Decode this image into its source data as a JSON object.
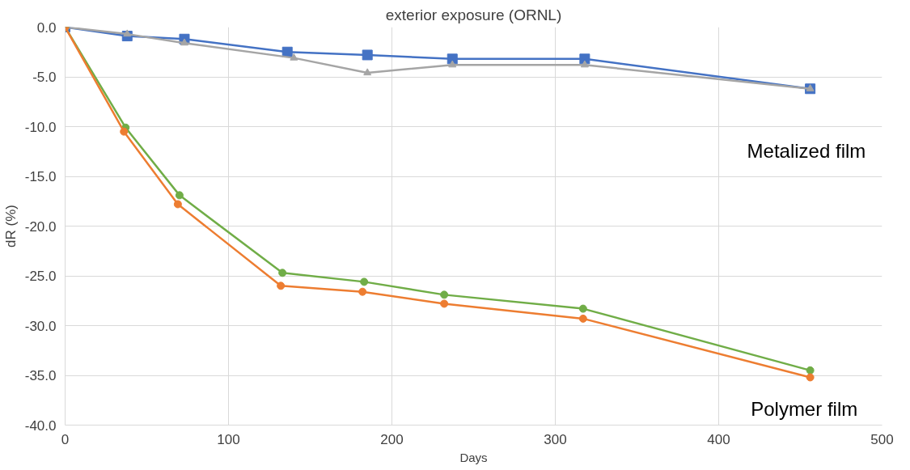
{
  "chart_data": {
    "type": "line",
    "title": "exterior exposure (ORNL)",
    "xlabel": "Days",
    "ylabel": "dR (%)",
    "series": [
      {
        "color": "#4472c4",
        "marker": "square",
        "x": [
          0,
          38,
          73,
          136,
          185,
          237,
          318,
          456
        ],
        "values": [
          0,
          -0.9,
          -1.2,
          -2.5,
          -2.8,
          -3.2,
          -3.2,
          -6.2
        ]
      },
      {
        "color": "#a5a5a5",
        "marker": "triangle",
        "x": [
          0,
          38,
          73,
          140,
          185,
          237,
          318,
          456
        ],
        "values": [
          0,
          -0.7,
          -1.6,
          -3.1,
          -4.6,
          -3.8,
          -3.8,
          -6.2
        ]
      },
      {
        "color": "#70ad47",
        "marker": "circle",
        "x": [
          0,
          37,
          70,
          133,
          183,
          232,
          317,
          456
        ],
        "values": [
          0,
          -10.1,
          -16.9,
          -24.7,
          -25.6,
          -26.9,
          -28.3,
          -34.5
        ]
      },
      {
        "color": "#ed7d31",
        "marker": "circle",
        "x": [
          0,
          36,
          69,
          132,
          182,
          232,
          317,
          456
        ],
        "values": [
          0,
          -10.5,
          -17.8,
          -26.0,
          -26.6,
          -27.8,
          -29.3,
          -35.2
        ]
      }
    ],
    "xlim": [
      0,
      500
    ],
    "xticks": [
      0,
      100,
      200,
      300,
      400,
      500
    ],
    "ylim": [
      -40,
      0
    ],
    "yticks": [
      {
        "value": -40,
        "label": "-40.0"
      },
      {
        "value": -35,
        "label": "-35.0"
      },
      {
        "value": -30,
        "label": "-30.0"
      },
      {
        "value": -25,
        "label": "-25.0"
      },
      {
        "value": -20,
        "label": "-20.0"
      },
      {
        "value": -15,
        "label": "-15.0"
      },
      {
        "value": -10,
        "label": "-10.0"
      },
      {
        "value": -5,
        "label": "-5.0"
      },
      {
        "value": 0,
        "label": "0.0"
      }
    ],
    "grid": true,
    "line_style": "solid",
    "annotations": [
      "Metalized film",
      "Polymer film"
    ]
  }
}
